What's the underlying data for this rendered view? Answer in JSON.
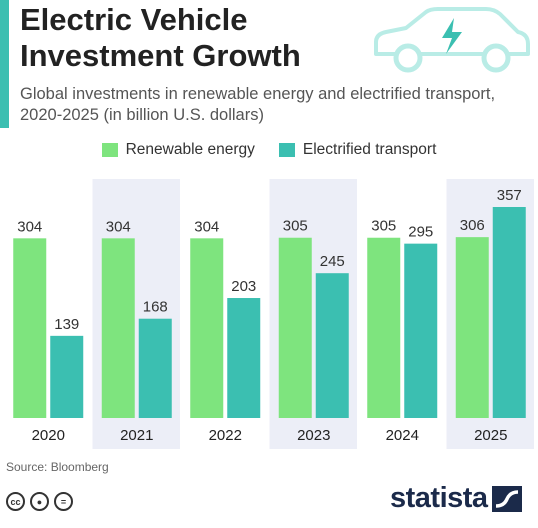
{
  "header": {
    "title": "Electric Vehicle Investment Growth",
    "subtitle": "Global investments in renewable energy and electrified transport, 2020-2025 (in billion U.S. dollars)",
    "icon": "electric-car-icon"
  },
  "colors": {
    "accent": "#3bbfb1",
    "renewable": "#7ee47e",
    "transport": "#3bbfb1",
    "band": "#eceef7",
    "brand": "#1b2a4a"
  },
  "chart_data": {
    "type": "bar",
    "title": "Electric Vehicle Investment Growth",
    "subtitle": "Global investments in renewable energy and electrified transport, 2020-2025 (in billion U.S. dollars)",
    "categories": [
      "2020",
      "2021",
      "2022",
      "2023",
      "2024",
      "2025"
    ],
    "series": [
      {
        "name": "Renewable energy",
        "values": [
          304,
          304,
          304,
          305,
          305,
          306
        ]
      },
      {
        "name": "Electrified transport",
        "values": [
          139,
          168,
          203,
          245,
          295,
          357
        ]
      }
    ],
    "ylim": [
      0,
      357
    ],
    "grid": false,
    "legend_position": "top-center",
    "data_labels": true
  },
  "footer": {
    "source": "Source: Bloomberg",
    "brand": "statista",
    "license_icons": [
      "cc-icon",
      "by-icon",
      "nd-icon"
    ]
  }
}
